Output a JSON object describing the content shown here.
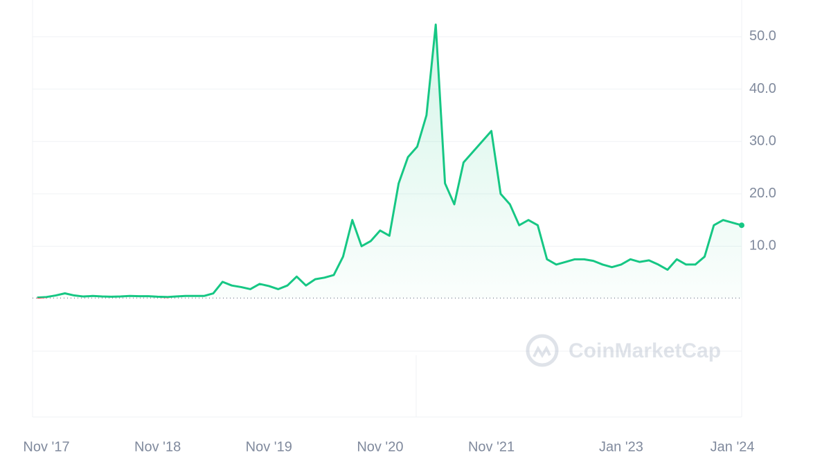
{
  "chart_data": {
    "type": "line",
    "x": [
      "2017-10",
      "2017-11",
      "2017-12",
      "2018-01",
      "2018-02",
      "2018-03",
      "2018-04",
      "2018-05",
      "2018-06",
      "2018-07",
      "2018-08",
      "2018-09",
      "2018-10",
      "2018-11",
      "2018-12",
      "2019-01",
      "2019-02",
      "2019-03",
      "2019-04",
      "2019-05",
      "2019-06",
      "2019-07",
      "2019-08",
      "2019-09",
      "2019-10",
      "2019-11",
      "2019-12",
      "2020-01",
      "2020-02",
      "2020-03",
      "2020-04",
      "2020-05",
      "2020-06",
      "2020-07",
      "2020-08",
      "2020-09",
      "2020-10",
      "2020-11",
      "2020-12",
      "2021-01",
      "2021-02",
      "2021-03",
      "2021-04",
      "2021-05",
      "2021-06",
      "2021-07",
      "2021-08",
      "2021-09",
      "2021-10",
      "2021-11",
      "2021-12",
      "2022-01",
      "2022-02",
      "2022-03",
      "2022-04",
      "2022-05",
      "2022-06",
      "2022-07",
      "2022-08",
      "2022-09",
      "2022-10",
      "2022-11",
      "2022-12",
      "2023-01",
      "2023-02",
      "2023-03",
      "2023-04",
      "2023-05",
      "2023-06",
      "2023-07",
      "2023-08",
      "2023-09",
      "2023-10",
      "2023-11",
      "2023-12",
      "2024-01",
      "2024-02"
    ],
    "series": [
      {
        "color": "#16c784",
        "values": [
          0.2,
          0.3,
          0.6,
          1.0,
          0.6,
          0.4,
          0.5,
          0.4,
          0.35,
          0.4,
          0.5,
          0.45,
          0.45,
          0.35,
          0.3,
          0.4,
          0.5,
          0.5,
          0.5,
          1.0,
          3.2,
          2.5,
          2.2,
          1.8,
          2.8,
          2.4,
          1.8,
          2.5,
          4.2,
          2.5,
          3.7,
          4.0,
          4.5,
          8.0,
          15.0,
          10.0,
          11.0,
          13.0,
          12.0,
          22.0,
          27.0,
          29.0,
          35.0,
          52.3,
          22.0,
          18.0,
          26.0,
          28.0,
          30.0,
          32.0,
          20.0,
          18.0,
          14.0,
          15.0,
          14.0,
          7.5,
          6.5,
          7.0,
          7.5,
          7.5,
          7.2,
          6.5,
          6.0,
          6.5,
          7.5,
          7.0,
          7.3,
          6.5,
          5.5,
          7.5,
          6.5,
          6.5,
          8.0,
          14.0,
          15.0,
          14.5,
          14.0
        ]
      }
    ],
    "below_color": "#ea3943",
    "reference_line": 0.1,
    "xlim": [
      "2017-10",
      "2024-02"
    ],
    "xticks": [
      {
        "value": "2017-11",
        "label": "Nov '17"
      },
      {
        "value": "2018-11",
        "label": "Nov '18"
      },
      {
        "value": "2019-11",
        "label": "Nov '19"
      },
      {
        "value": "2020-11",
        "label": "Nov '20"
      },
      {
        "value": "2021-11",
        "label": "Nov '21"
      },
      {
        "value": "2023-01",
        "label": "Jan '23"
      },
      {
        "value": "2024-01",
        "label": "Jan '24"
      }
    ],
    "ylim": [
      -22.6,
      57
    ],
    "yticks": [
      {
        "value": 10,
        "label": "10.0"
      },
      {
        "value": 20,
        "label": "20.0"
      },
      {
        "value": 30,
        "label": "30.0"
      },
      {
        "value": 40,
        "label": "40.0"
      },
      {
        "value": 50,
        "label": "50.0"
      }
    ],
    "grid": true,
    "watermark": "CoinMarketCap"
  }
}
